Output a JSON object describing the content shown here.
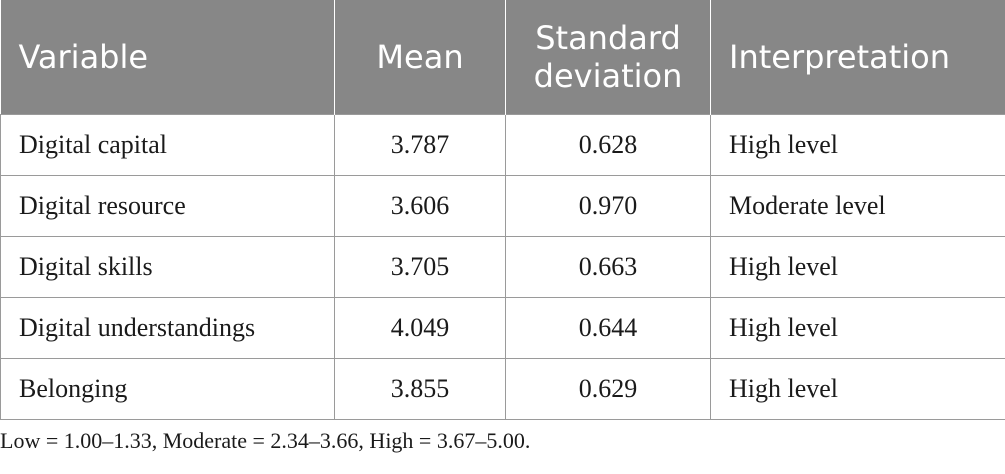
{
  "table": {
    "headers": [
      "Variable",
      "Mean",
      "Standard deviation",
      "Interpretation"
    ],
    "rows": [
      [
        "Digital capital",
        "3.787",
        "0.628",
        "High level"
      ],
      [
        "Digital resource",
        "3.606",
        "0.970",
        "Moderate level"
      ],
      [
        "Digital skills",
        "3.705",
        "0.663",
        "High level"
      ],
      [
        "Digital understandings",
        "4.049",
        "0.644",
        "High level"
      ],
      [
        "Belonging",
        "3.855",
        "0.629",
        "High level"
      ]
    ]
  },
  "footnote": "Low = 1.00–1.33, Moderate = 2.34–3.66, High = 3.67–5.00."
}
